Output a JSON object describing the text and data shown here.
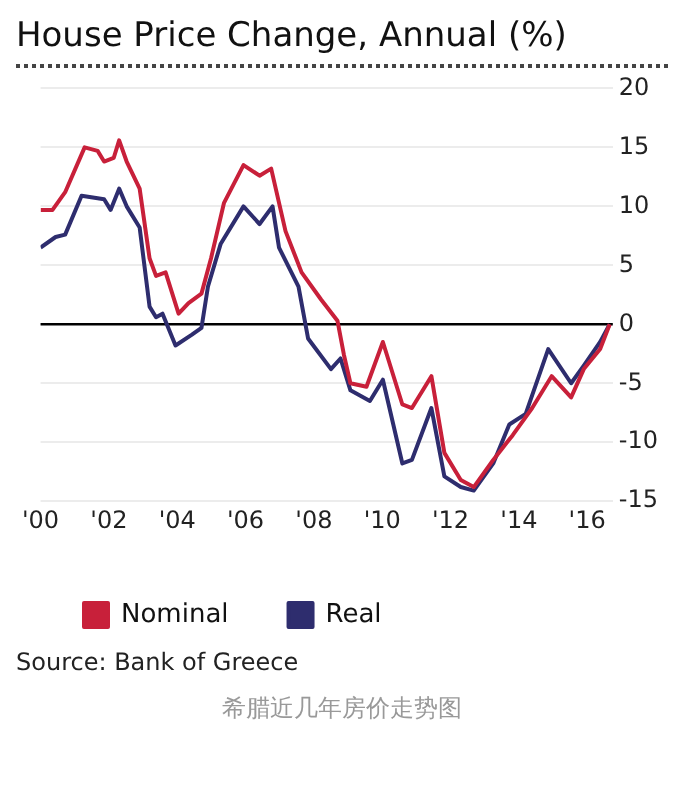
{
  "chart_data": {
    "type": "line",
    "title": "House Price Change, Annual (%)",
    "annotations": [
      "Source: Bank of Greece",
      "希腊近几年房价走势图"
    ],
    "xlim": [
      2000,
      2016.75
    ],
    "xticks": [
      {
        "value": 2000,
        "label": "'00"
      },
      {
        "value": 2002,
        "label": "'02"
      },
      {
        "value": 2004,
        "label": "'04"
      },
      {
        "value": 2006,
        "label": "'06"
      },
      {
        "value": 2008,
        "label": "'08"
      },
      {
        "value": 2010,
        "label": "'10"
      },
      {
        "value": 2012,
        "label": "'12"
      },
      {
        "value": 2014,
        "label": "'14"
      },
      {
        "value": 2016,
        "label": "'16"
      }
    ],
    "ylim": [
      -15,
      20
    ],
    "yticks": [
      -15,
      -10,
      -5,
      0,
      5,
      10,
      15,
      20
    ],
    "grid": "y",
    "legend": "bottom",
    "marker": "none",
    "line_style": "solid",
    "ref_lines": [
      {
        "axis": "y",
        "value": 0,
        "color": "#000000"
      }
    ],
    "series": [
      {
        "name": "Nominal",
        "color": "#c8203a",
        "x": [
          2000,
          2000.35,
          2000.72,
          2001.29,
          2001.67,
          2001.86,
          2002.14,
          2002.3,
          2002.52,
          2002.9,
          2003.19,
          2003.38,
          2003.66,
          2004.04,
          2004.33,
          2004.71,
          2004.99,
          2005.37,
          2005.94,
          2006.41,
          2006.75,
          2007.17,
          2007.64,
          2008.21,
          2008.69,
          2008.88,
          2009.07,
          2009.54,
          2010.02,
          2010.59,
          2010.87,
          2011.44,
          2011.82,
          2012.3,
          2012.68,
          2013.25,
          2013.82,
          2014.39,
          2014.96,
          2015.53,
          2015.9,
          2016.38,
          2016.66
        ],
        "values": [
          9.7,
          9.7,
          11.2,
          15,
          14.7,
          13.8,
          14.1,
          15.6,
          13.8,
          11.5,
          5.6,
          4.1,
          4.4,
          0.9,
          1.8,
          2.6,
          5.6,
          10.3,
          13.5,
          12.6,
          13.2,
          7.9,
          4.4,
          2.1,
          0.3,
          -2.6,
          -5,
          -5.3,
          -1.5,
          -6.8,
          -7.1,
          -4.4,
          -10.9,
          -13.2,
          -13.8,
          -11.5,
          -9.4,
          -7.1,
          -4.4,
          -6.2,
          -3.8,
          -2.1,
          0
        ]
      },
      {
        "name": "Real",
        "color": "#2e2d6e",
        "x": [
          2000,
          2000.44,
          2000.72,
          2001.2,
          2001.86,
          2002.05,
          2002.3,
          2002.52,
          2002.9,
          2003.19,
          2003.38,
          2003.57,
          2003.95,
          2004.42,
          2004.71,
          2004.9,
          2005.27,
          2005.94,
          2006.41,
          2006.79,
          2006.98,
          2007.55,
          2007.83,
          2008.5,
          2008.78,
          2009.07,
          2009.64,
          2010.02,
          2010.59,
          2010.87,
          2011.44,
          2011.82,
          2012.3,
          2012.68,
          2013.25,
          2013.72,
          2014.2,
          2014.86,
          2015.53,
          2015.9,
          2016.38,
          2016.66
        ],
        "values": [
          6.5,
          7.4,
          7.6,
          10.9,
          10.6,
          9.7,
          11.5,
          10,
          8.2,
          1.5,
          0.6,
          0.9,
          -1.8,
          -0.9,
          -0.3,
          3.2,
          6.8,
          10,
          8.5,
          10,
          6.5,
          3.2,
          -1.2,
          -3.8,
          -2.9,
          -5.6,
          -6.5,
          -4.7,
          -11.8,
          -11.5,
          -7.1,
          -12.9,
          -13.8,
          -14.1,
          -11.8,
          -8.5,
          -7.6,
          -2.1,
          -5,
          -3.5,
          -1.5,
          0
        ]
      }
    ]
  }
}
